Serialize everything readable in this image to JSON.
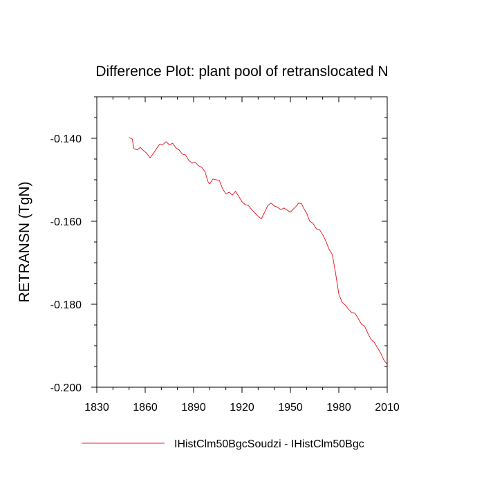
{
  "chart_data": {
    "type": "line",
    "title": "Difference Plot: plant pool of retranslocated N",
    "xlabel": "",
    "ylabel": "RETRANSN  (TgN)",
    "xlim": [
      1830,
      2010
    ],
    "ylim": [
      -0.2,
      -0.13
    ],
    "x_ticks": [
      1830,
      1860,
      1890,
      1920,
      1950,
      1980,
      2010
    ],
    "x_tick_labels": [
      "1830",
      "1860",
      "1890",
      "1920",
      "1950",
      "1980",
      "2010"
    ],
    "y_ticks": [
      -0.2,
      -0.18,
      -0.16,
      -0.14
    ],
    "y_tick_labels": [
      "-0.200",
      "-0.180",
      "-0.160",
      "-0.140"
    ],
    "grid": false,
    "legend_position": "bottom",
    "series": [
      {
        "name": "IHistClm50BgcSoudzi - IHistClm50Bgc",
        "color": "#e8202a",
        "x": [
          1850,
          1852,
          1853,
          1855,
          1857,
          1859,
          1861,
          1863,
          1865,
          1867,
          1869,
          1871,
          1873,
          1875,
          1877,
          1879,
          1881,
          1883,
          1885,
          1887,
          1889,
          1891,
          1893,
          1895,
          1897,
          1899,
          1900,
          1902,
          1904,
          1906,
          1908,
          1910,
          1912,
          1914,
          1916,
          1918,
          1920,
          1922,
          1924,
          1926,
          1928,
          1930,
          1932,
          1934,
          1936,
          1938,
          1940,
          1942,
          1944,
          1946,
          1948,
          1950,
          1952,
          1954,
          1955,
          1957,
          1958,
          1960,
          1962,
          1964,
          1966,
          1968,
          1970,
          1972,
          1974,
          1976,
          1978,
          1980,
          1982,
          1984,
          1986,
          1988,
          1990,
          1992,
          1994,
          1996,
          1998,
          2000,
          2002,
          2004,
          2006,
          2008,
          2010
        ],
        "y": [
          -0.1398,
          -0.1402,
          -0.1425,
          -0.1428,
          -0.1422,
          -0.143,
          -0.1436,
          -0.1447,
          -0.1437,
          -0.1425,
          -0.1414,
          -0.1415,
          -0.1408,
          -0.1416,
          -0.1412,
          -0.1423,
          -0.1428,
          -0.1438,
          -0.144,
          -0.1453,
          -0.146,
          -0.1458,
          -0.1466,
          -0.147,
          -0.148,
          -0.1505,
          -0.151,
          -0.1498,
          -0.15,
          -0.1502,
          -0.1522,
          -0.1534,
          -0.153,
          -0.1537,
          -0.1528,
          -0.154,
          -0.1553,
          -0.156,
          -0.1562,
          -0.1572,
          -0.158,
          -0.1588,
          -0.1594,
          -0.1578,
          -0.1562,
          -0.1556,
          -0.1563,
          -0.1566,
          -0.1572,
          -0.1568,
          -0.1573,
          -0.1578,
          -0.157,
          -0.1562,
          -0.1556,
          -0.1558,
          -0.1567,
          -0.158,
          -0.16,
          -0.1605,
          -0.1618,
          -0.162,
          -0.1632,
          -0.1648,
          -0.1668,
          -0.168,
          -0.1725,
          -0.1775,
          -0.1795,
          -0.1802,
          -0.1812,
          -0.182,
          -0.1822,
          -0.1834,
          -0.1848,
          -0.1853,
          -0.187,
          -0.1885,
          -0.1892,
          -0.1905,
          -0.1918,
          -0.1935,
          -0.1945
        ]
      }
    ]
  }
}
